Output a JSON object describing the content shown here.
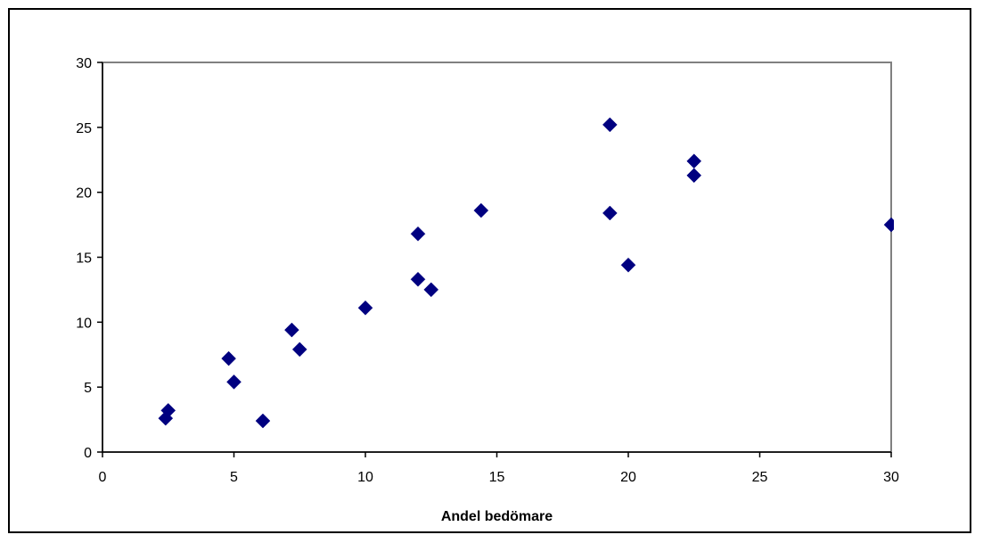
{
  "chart_data": {
    "type": "scatter",
    "title": "",
    "xlabel": "Andel bedömare",
    "ylabel": "",
    "xlim": [
      0,
      30
    ],
    "ylim": [
      0,
      30
    ],
    "x_ticks": [
      "0",
      "5",
      "10",
      "15",
      "20",
      "25",
      "30"
    ],
    "y_ticks": [
      "0",
      "5",
      "10",
      "15",
      "20",
      "25",
      "30"
    ],
    "grid": false,
    "legend": "none",
    "marker": "diamond",
    "series": [
      {
        "color": "#000080",
        "points": [
          {
            "x": 2.5,
            "y": 3.2
          },
          {
            "x": 2.4,
            "y": 2.6
          },
          {
            "x": 4.8,
            "y": 7.2
          },
          {
            "x": 5.0,
            "y": 5.4
          },
          {
            "x": 6.1,
            "y": 2.4
          },
          {
            "x": 7.2,
            "y": 9.4
          },
          {
            "x": 7.5,
            "y": 7.9
          },
          {
            "x": 10.0,
            "y": 11.1
          },
          {
            "x": 12.0,
            "y": 16.8
          },
          {
            "x": 12.0,
            "y": 13.3
          },
          {
            "x": 12.5,
            "y": 12.5
          },
          {
            "x": 14.4,
            "y": 18.6
          },
          {
            "x": 19.3,
            "y": 25.2
          },
          {
            "x": 19.3,
            "y": 18.4
          },
          {
            "x": 20.0,
            "y": 14.4
          },
          {
            "x": 22.5,
            "y": 22.4
          },
          {
            "x": 22.5,
            "y": 21.3
          },
          {
            "x": 30.0,
            "y": 17.5
          }
        ]
      }
    ]
  }
}
